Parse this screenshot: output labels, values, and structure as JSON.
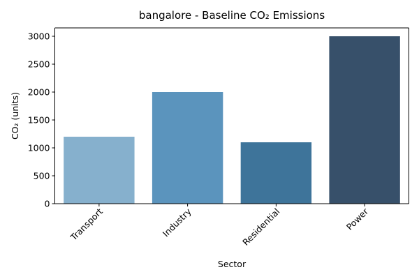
{
  "chart_data": {
    "type": "bar",
    "title": "bangalore - Baseline CO₂ Emissions",
    "xlabel": "Sector",
    "ylabel": "CO₂ (units)",
    "categories": [
      "Transport",
      "Industry",
      "Residential",
      "Power"
    ],
    "values": [
      1200,
      2000,
      1100,
      3000
    ],
    "ylim": [
      0,
      3150
    ],
    "yticks": [
      0,
      500,
      1000,
      1500,
      2000,
      2500,
      3000
    ],
    "colors": [
      "#86b0cd",
      "#5b94bd",
      "#3e749a",
      "#37506a"
    ],
    "grid": false,
    "legend": "none"
  }
}
